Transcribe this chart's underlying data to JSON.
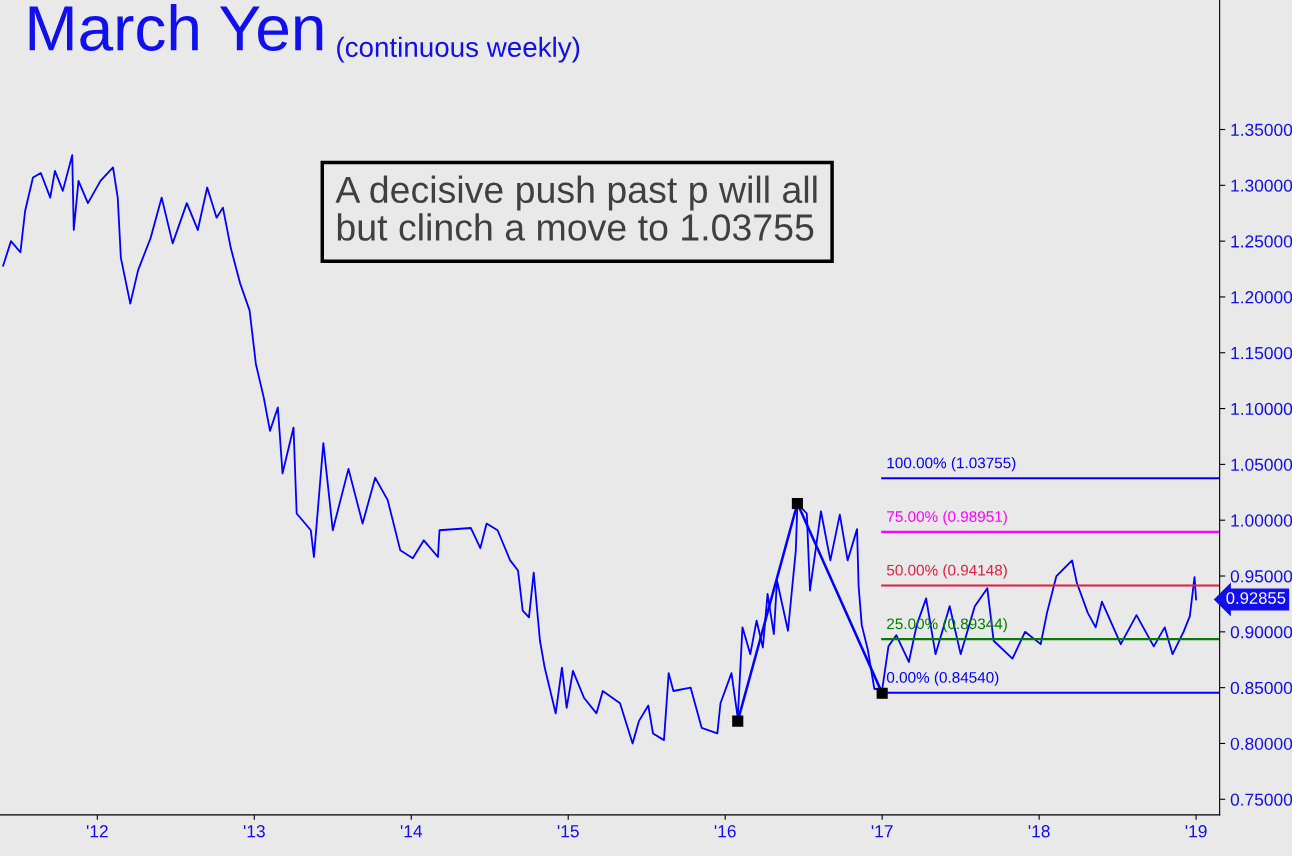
{
  "chart_data": {
    "type": "line",
    "title": "March Yen",
    "subtitle": "(continuous weekly)",
    "x": [
      2011.4,
      2011.45,
      2011.51,
      2011.54,
      2011.59,
      2011.64,
      2011.7,
      2011.73,
      2011.78,
      2011.84,
      2011.85,
      2011.88,
      2011.94,
      2012.02,
      2012.1,
      2012.13,
      2012.15,
      2012.21,
      2012.26,
      2012.34,
      2012.41,
      2012.48,
      2012.57,
      2012.64,
      2012.7,
      2012.76,
      2012.8,
      2012.85,
      2012.91,
      2012.97,
      2013.01,
      2013.06,
      2013.1,
      2013.15,
      2013.18,
      2013.25,
      2013.27,
      2013.36,
      2013.38,
      2013.44,
      2013.5,
      2013.6,
      2013.69,
      2013.77,
      2013.85,
      2013.93,
      2014.01,
      2014.08,
      2014.17,
      2014.18,
      2014.38,
      2014.44,
      2014.48,
      2014.55,
      2014.63,
      2014.68,
      2014.71,
      2014.75,
      2014.78,
      2014.82,
      2014.85,
      2014.92,
      2014.96,
      2014.99,
      2015.03,
      2015.1,
      2015.18,
      2015.22,
      2015.33,
      2015.41,
      2015.45,
      2015.51,
      2015.54,
      2015.61,
      2015.64,
      2015.67,
      2015.78,
      2015.85,
      2015.95,
      2015.97,
      2016.04,
      2016.08,
      2016.11,
      2016.16,
      2016.2,
      2016.24,
      2016.27,
      2016.31,
      2016.33,
      2016.4,
      2016.45,
      2016.46,
      2016.52,
      2016.54,
      2016.61,
      2016.67,
      2016.73,
      2016.78,
      2016.84,
      2016.85,
      2016.87,
      2016.91,
      2016.95,
      2017.0,
      2017.04,
      2017.09,
      2017.17,
      2017.22,
      2017.28,
      2017.34,
      2017.43,
      2017.5,
      2017.59,
      2017.67,
      2017.71,
      2017.83,
      2017.91,
      2018.01,
      2018.05,
      2018.11,
      2018.21,
      2018.24,
      2018.31,
      2018.36,
      2018.4,
      2018.52,
      2018.62,
      2018.73,
      2018.8,
      2018.85,
      2018.92,
      2018.96,
      2018.99,
      2019.0
    ],
    "series": [
      {
        "color": "#0000ff",
        "values": [
          1.228,
          1.25,
          1.24,
          1.277,
          1.307,
          1.311,
          1.289,
          1.313,
          1.295,
          1.327,
          1.26,
          1.304,
          1.284,
          1.304,
          1.316,
          1.289,
          1.235,
          1.194,
          1.224,
          1.253,
          1.289,
          1.248,
          1.284,
          1.26,
          1.298,
          1.271,
          1.28,
          1.244,
          1.212,
          1.188,
          1.14,
          1.11,
          1.08,
          1.101,
          1.042,
          1.083,
          1.006,
          0.991,
          0.967,
          1.069,
          0.991,
          1.046,
          0.997,
          1.038,
          1.018,
          0.973,
          0.966,
          0.982,
          0.967,
          0.991,
          0.993,
          0.975,
          0.997,
          0.991,
          0.964,
          0.955,
          0.919,
          0.913,
          0.953,
          0.892,
          0.868,
          0.827,
          0.868,
          0.832,
          0.865,
          0.841,
          0.827,
          0.847,
          0.836,
          0.8,
          0.82,
          0.834,
          0.809,
          0.803,
          0.863,
          0.847,
          0.85,
          0.814,
          0.809,
          0.836,
          0.863,
          0.823,
          0.904,
          0.88,
          0.91,
          0.886,
          0.934,
          0.898,
          0.946,
          0.901,
          0.973,
          1.015,
          1.006,
          0.937,
          1.008,
          0.964,
          1.005,
          0.964,
          0.992,
          0.941,
          0.906,
          0.883,
          0.849,
          0.848,
          0.887,
          0.897,
          0.873,
          0.906,
          0.93,
          0.88,
          0.923,
          0.88,
          0.923,
          0.939,
          0.892,
          0.876,
          0.9,
          0.889,
          0.917,
          0.95,
          0.964,
          0.944,
          0.917,
          0.904,
          0.927,
          0.889,
          0.915,
          0.887,
          0.904,
          0.88,
          0.9,
          0.914,
          0.949,
          0.929
        ]
      },
      {
        "type": "line",
        "color": "#0000ff",
        "marker": "square",
        "x": [
          2016.08,
          2016.46,
          2017.0
        ],
        "values": [
          0.82,
          1.015,
          0.845
        ]
      }
    ],
    "xlim": [
      2011.38,
      2019.15
    ],
    "xticks": [
      {
        "value": 2012,
        "label": "'12"
      },
      {
        "value": 2013,
        "label": "'13"
      },
      {
        "value": 2014,
        "label": "'14"
      },
      {
        "value": 2015,
        "label": "'15"
      },
      {
        "value": 2016,
        "label": "'16"
      },
      {
        "value": 2017,
        "label": "'17"
      },
      {
        "value": 2018,
        "label": "'18"
      },
      {
        "value": 2019,
        "label": "'19"
      }
    ],
    "ylim": [
      0.736,
      1.466
    ],
    "yticks": [
      {
        "value": 0.75,
        "label": "0.75000"
      },
      {
        "value": 0.8,
        "label": "0.80000"
      },
      {
        "value": 0.85,
        "label": "0.85000"
      },
      {
        "value": 0.9,
        "label": "0.90000"
      },
      {
        "value": 0.95,
        "label": "0.95000"
      },
      {
        "value": 1.0,
        "label": "1.00000"
      },
      {
        "value": 1.05,
        "label": "1.05000"
      },
      {
        "value": 1.1,
        "label": "1.10000"
      },
      {
        "value": 1.15,
        "label": "1.15000"
      },
      {
        "value": 1.2,
        "label": "1.20000"
      },
      {
        "value": 1.25,
        "label": "1.25000"
      },
      {
        "value": 1.3,
        "label": "1.30000"
      },
      {
        "value": 1.35,
        "label": "1.35000"
      }
    ],
    "ref_lines": [
      {
        "axis": "y",
        "value": 1.03755,
        "label": "100.00% (1.03755)",
        "color": "#0000ff"
      },
      {
        "axis": "y",
        "value": 0.98951,
        "label": "75.00% (0.98951)",
        "color": "#ff00ff"
      },
      {
        "axis": "y",
        "value": 0.94148,
        "label": "50.00% (0.94148)",
        "color": "#e0203c"
      },
      {
        "axis": "y",
        "value": 0.89344,
        "label": "25.00% (0.89344)",
        "color": "#008000"
      },
      {
        "axis": "y",
        "value": 0.8454,
        "label": "0.00% (0.84540)",
        "color": "#0000ff"
      }
    ],
    "annotations": [
      "A decisive push past p will all\nbut clinch a move to 1.03755",
      "0.92855"
    ],
    "grid": false,
    "legend": false,
    "marker": "none",
    "line_style": "solid"
  }
}
